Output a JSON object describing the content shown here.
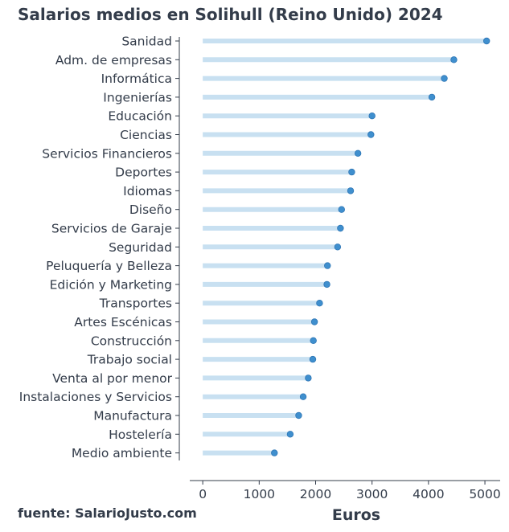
{
  "source_text": "fuente: SalarioJusto.com",
  "chart_data": {
    "type": "lollipop",
    "title": "Salarios medios en Solihull (Reino Unido) 2024",
    "xlabel": "Euros",
    "ylabel": "",
    "xlim": [
      -230,
      5270
    ],
    "xticks": [
      0,
      1000,
      2000,
      3000,
      4000,
      5000
    ],
    "grid": false,
    "colors": {
      "stem": "#c8e0f1",
      "dot": "#3f8fce",
      "dot_edge": "#2f76b5",
      "axis": "#333c4a"
    },
    "categories": [
      "Sanidad",
      "Adm. de empresas",
      "Informática",
      "Ingenierías",
      "Educación",
      "Ciencias",
      "Servicios Financieros",
      "Deportes",
      "Idiomas",
      "Diseño",
      "Servicios de Garaje",
      "Seguridad",
      "Peluquería y Belleza",
      "Edición y Marketing",
      "Transportes",
      "Artes Escénicas",
      "Construcción",
      "Trabajo social",
      "Venta al por menor",
      "Instalaciones y Servicios",
      "Manufactura",
      "Hostelería",
      "Medio ambiente"
    ],
    "values": [
      5030,
      4450,
      4280,
      4060,
      3000,
      2980,
      2750,
      2640,
      2620,
      2460,
      2440,
      2390,
      2210,
      2200,
      2070,
      1980,
      1960,
      1950,
      1870,
      1780,
      1700,
      1550,
      1270
    ]
  }
}
